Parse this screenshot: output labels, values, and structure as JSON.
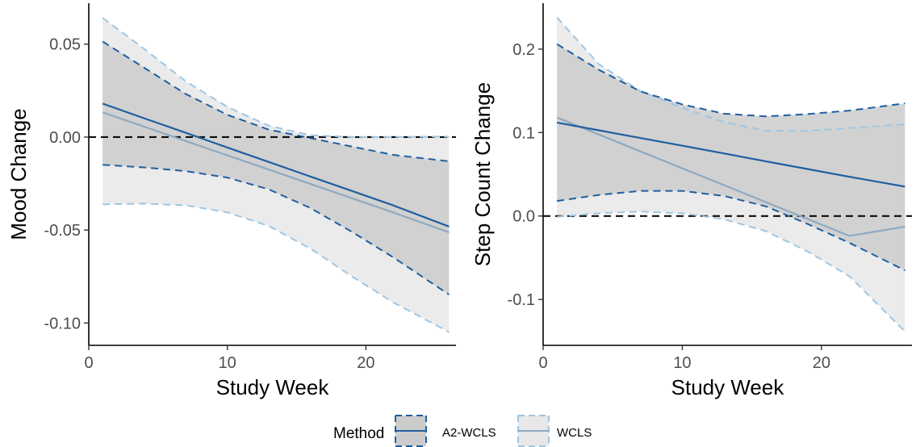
{
  "legend": {
    "title": "Method",
    "items": [
      {
        "label": "A2-WCLS",
        "line_color": "#1f5fa0",
        "band_edge_color": "#1f5fa0",
        "band_fill": "#cccccc"
      },
      {
        "label": "WCLS",
        "line_color": "#8fa9bf",
        "band_edge_color": "#9fc6e2",
        "band_fill": "#e8e8e8"
      }
    ]
  },
  "chart_data": [
    {
      "type": "line",
      "xlabel": "Study Week",
      "ylabel": "Mood Change",
      "xlim": [
        0,
        26.5
      ],
      "ylim": [
        -0.112,
        0.072
      ],
      "xticks": [
        0,
        10,
        20
      ],
      "xtick_labels": [
        "0",
        "10",
        "20"
      ],
      "yticks": [
        0.05,
        0.0,
        -0.05,
        -0.1
      ],
      "ytick_labels": [
        "0.05",
        "0.00",
        "-0.05",
        "-0.10"
      ],
      "reference_line": 0,
      "grid": false,
      "series": [
        {
          "name": "A2-WCLS",
          "x": [
            1,
            4,
            7,
            10,
            13,
            16,
            19,
            22,
            26
          ],
          "estimate": [
            0.018,
            0.0101,
            0.0023,
            -0.0056,
            -0.0134,
            -0.0212,
            -0.029,
            -0.0368,
            -0.0481
          ],
          "lower": [
            -0.0149,
            -0.0163,
            -0.0183,
            -0.0218,
            -0.0281,
            -0.0382,
            -0.051,
            -0.0648,
            -0.0847
          ],
          "upper": [
            0.0514,
            0.0373,
            0.0232,
            0.012,
            0.004,
            -0.0005,
            -0.0051,
            -0.0096,
            -0.013
          ]
        },
        {
          "name": "WCLS",
          "x": [
            1,
            4,
            7,
            10,
            13,
            16,
            19,
            22,
            26
          ],
          "estimate": [
            0.0133,
            0.0056,
            -0.0021,
            -0.0098,
            -0.0175,
            -0.0252,
            -0.0329,
            -0.0406,
            -0.0512
          ],
          "lower": [
            -0.0362,
            -0.0358,
            -0.0367,
            -0.0405,
            -0.0478,
            -0.06,
            -0.075,
            -0.089,
            -0.1049
          ],
          "upper": [
            0.0641,
            0.0475,
            0.03,
            0.0163,
            0.0061,
            0.001,
            0.0001,
            0.0001,
            0.0003
          ]
        }
      ]
    },
    {
      "type": "line",
      "xlabel": "Study Week",
      "ylabel": "Step Count Change",
      "xlim": [
        0,
        26.5
      ],
      "ylim": [
        -0.155,
        0.255
      ],
      "xticks": [
        0,
        10,
        20
      ],
      "xtick_labels": [
        "0",
        "10",
        "20"
      ],
      "yticks": [
        0.2,
        0.1,
        0.0,
        -0.1
      ],
      "ytick_labels": [
        "0.2",
        "0.1",
        "0.0",
        "-0.1"
      ],
      "reference_line": 0,
      "grid": false,
      "series": [
        {
          "name": "A2-WCLS",
          "x": [
            1,
            4,
            7,
            10,
            13,
            16,
            19,
            22,
            26
          ],
          "estimate": [
            0.112,
            0.1027,
            0.0934,
            0.0842,
            0.0749,
            0.0656,
            0.0563,
            0.047,
            0.0352
          ],
          "lower": [
            0.018,
            0.0252,
            0.0301,
            0.0301,
            0.024,
            0.0116,
            -0.0096,
            -0.0321,
            -0.0652
          ],
          "upper": [
            0.206,
            0.1752,
            0.1493,
            0.1337,
            0.1226,
            0.1194,
            0.1221,
            0.1263,
            0.135
          ]
        },
        {
          "name": "WCLS",
          "x": [
            1,
            4,
            7,
            10,
            13,
            16,
            19,
            22,
            26
          ],
          "estimate": [
            0.118,
            0.0977,
            0.0774,
            0.0572,
            0.0369,
            0.0166,
            -0.0036,
            -0.0239,
            -0.0128
          ],
          "lower": [
            -0.001,
            0.0034,
            0.0053,
            0.0033,
            -0.004,
            -0.0181,
            -0.0424,
            -0.0721,
            -0.1385
          ],
          "upper": [
            0.238,
            0.182,
            0.1495,
            0.1297,
            0.1126,
            0.1022,
            0.1021,
            0.1053,
            0.11
          ]
        }
      ]
    }
  ]
}
